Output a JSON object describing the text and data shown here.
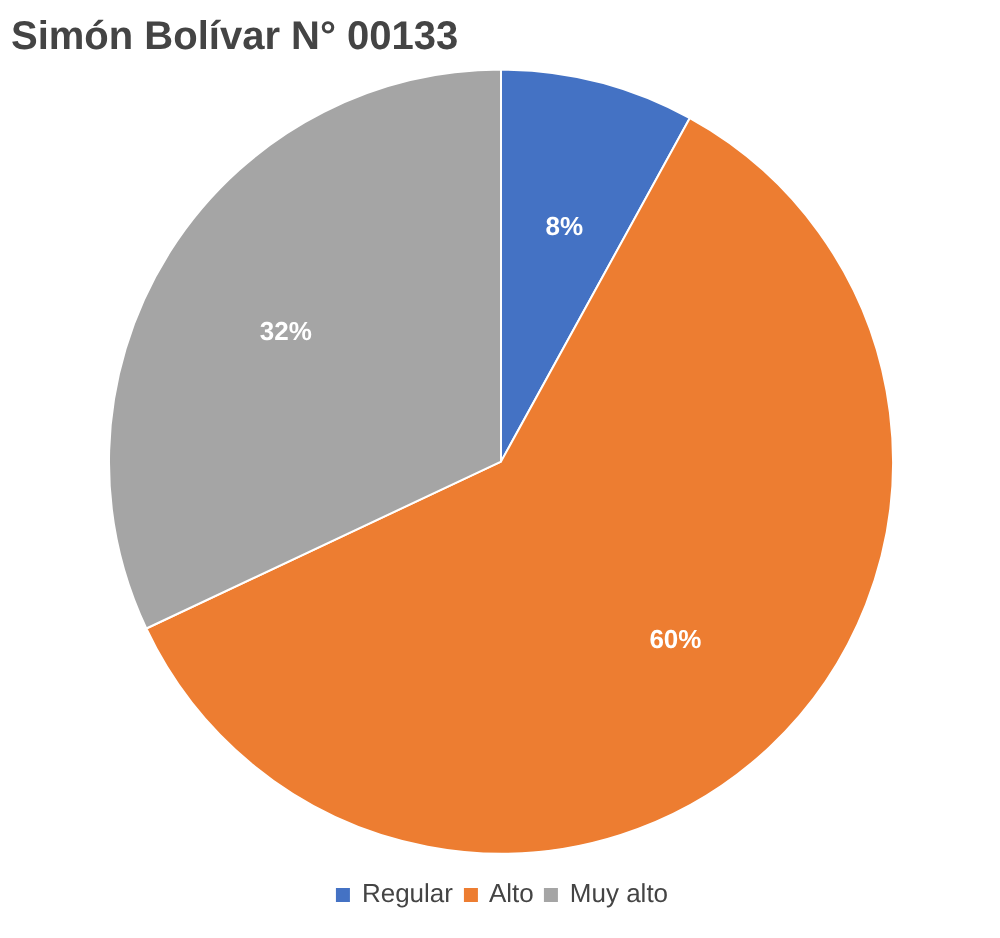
{
  "chart_data": {
    "type": "pie",
    "title": "Simón Bolívar N° 00133",
    "categories": [
      "Regular",
      "Alto",
      "Muy alto"
    ],
    "values": [
      8,
      60,
      32
    ],
    "colors": [
      "#4472c4",
      "#ed7d31",
      "#a5a5a5"
    ],
    "value_labels": [
      "8%",
      "60%",
      "32%"
    ],
    "legend": "bottom"
  }
}
